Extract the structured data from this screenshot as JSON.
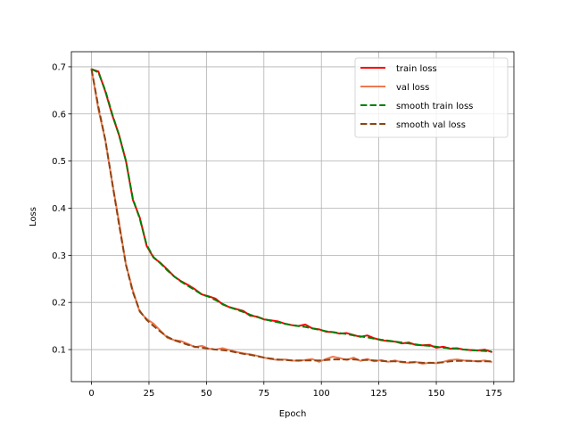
{
  "chart_data": {
    "type": "line",
    "title": "",
    "xlabel": "Epoch",
    "ylabel": "Loss",
    "xlim": [
      -8.75,
      183.75
    ],
    "ylim": [
      0.032,
      0.732
    ],
    "xticks": [
      0,
      25,
      50,
      75,
      100,
      125,
      150,
      175
    ],
    "yticks": [
      0.1,
      0.2,
      0.3,
      0.4,
      0.5,
      0.6,
      0.7
    ],
    "grid": true,
    "legend": "top-right",
    "series": [
      {
        "name": "train loss",
        "color": "#ff0000",
        "style": "solid",
        "x": [
          0,
          3,
          6,
          9,
          12,
          15,
          18,
          21,
          24,
          27,
          30,
          33,
          36,
          39,
          42,
          45,
          48,
          51,
          54,
          57,
          60,
          63,
          66,
          69,
          72,
          75,
          78,
          81,
          84,
          87,
          90,
          93,
          96,
          99,
          102,
          105,
          108,
          111,
          114,
          117,
          120,
          123,
          126,
          129,
          132,
          135,
          138,
          141,
          144,
          147,
          150,
          153,
          156,
          159,
          162,
          165,
          168,
          171,
          174
        ],
        "values": [
          0.695,
          0.69,
          0.648,
          0.598,
          0.555,
          0.5,
          0.418,
          0.38,
          0.32,
          0.295,
          0.284,
          0.27,
          0.255,
          0.245,
          0.237,
          0.228,
          0.217,
          0.213,
          0.208,
          0.196,
          0.19,
          0.186,
          0.182,
          0.172,
          0.17,
          0.164,
          0.162,
          0.16,
          0.155,
          0.152,
          0.15,
          0.153,
          0.145,
          0.143,
          0.138,
          0.137,
          0.134,
          0.135,
          0.131,
          0.127,
          0.13,
          0.124,
          0.12,
          0.118,
          0.117,
          0.113,
          0.115,
          0.11,
          0.109,
          0.11,
          0.104,
          0.106,
          0.102,
          0.103,
          0.1,
          0.099,
          0.098,
          0.1,
          0.095
        ]
      },
      {
        "name": "val loss",
        "color": "#f07850",
        "style": "solid",
        "x": [
          0,
          3,
          6,
          9,
          12,
          15,
          18,
          21,
          24,
          27,
          30,
          33,
          36,
          39,
          42,
          45,
          48,
          51,
          54,
          57,
          60,
          63,
          66,
          69,
          72,
          75,
          78,
          81,
          84,
          87,
          90,
          93,
          96,
          99,
          102,
          105,
          108,
          111,
          114,
          117,
          120,
          123,
          126,
          129,
          132,
          135,
          138,
          141,
          144,
          147,
          150,
          153,
          156,
          159,
          162,
          165,
          168,
          171,
          174
        ],
        "values": [
          0.695,
          0.61,
          0.545,
          0.455,
          0.37,
          0.28,
          0.225,
          0.18,
          0.165,
          0.155,
          0.14,
          0.125,
          0.12,
          0.118,
          0.112,
          0.105,
          0.108,
          0.102,
          0.1,
          0.103,
          0.099,
          0.095,
          0.092,
          0.09,
          0.087,
          0.083,
          0.08,
          0.078,
          0.079,
          0.077,
          0.076,
          0.078,
          0.08,
          0.074,
          0.08,
          0.085,
          0.082,
          0.078,
          0.083,
          0.076,
          0.08,
          0.075,
          0.078,
          0.074,
          0.077,
          0.073,
          0.072,
          0.074,
          0.07,
          0.072,
          0.071,
          0.074,
          0.078,
          0.079,
          0.077,
          0.076,
          0.075,
          0.077,
          0.074
        ]
      },
      {
        "name": "smooth train loss",
        "color": "#008000",
        "style": "dashed",
        "x": [
          0,
          3,
          6,
          9,
          12,
          15,
          18,
          21,
          24,
          27,
          30,
          33,
          36,
          39,
          42,
          45,
          48,
          51,
          54,
          57,
          60,
          63,
          66,
          69,
          72,
          75,
          78,
          81,
          84,
          87,
          90,
          93,
          96,
          99,
          102,
          105,
          108,
          111,
          114,
          117,
          120,
          123,
          126,
          129,
          132,
          135,
          138,
          141,
          144,
          147,
          150,
          153,
          156,
          159,
          162,
          165,
          168,
          171,
          174
        ],
        "values": [
          0.695,
          0.688,
          0.65,
          0.6,
          0.555,
          0.5,
          0.42,
          0.378,
          0.322,
          0.296,
          0.283,
          0.268,
          0.255,
          0.244,
          0.235,
          0.226,
          0.217,
          0.212,
          0.205,
          0.197,
          0.19,
          0.185,
          0.18,
          0.174,
          0.169,
          0.165,
          0.161,
          0.158,
          0.155,
          0.152,
          0.15,
          0.148,
          0.145,
          0.142,
          0.139,
          0.137,
          0.135,
          0.133,
          0.13,
          0.128,
          0.126,
          0.123,
          0.121,
          0.119,
          0.117,
          0.115,
          0.113,
          0.111,
          0.109,
          0.108,
          0.106,
          0.104,
          0.103,
          0.102,
          0.1,
          0.099,
          0.098,
          0.097,
          0.096
        ]
      },
      {
        "name": "smooth val loss",
        "color": "#8b4513",
        "style": "dashed",
        "x": [
          0,
          3,
          6,
          9,
          12,
          15,
          18,
          21,
          24,
          27,
          30,
          33,
          36,
          39,
          42,
          45,
          48,
          51,
          54,
          57,
          60,
          63,
          66,
          69,
          72,
          75,
          78,
          81,
          84,
          87,
          90,
          93,
          96,
          99,
          102,
          105,
          108,
          111,
          114,
          117,
          120,
          123,
          126,
          129,
          132,
          135,
          138,
          141,
          144,
          147,
          150,
          153,
          156,
          159,
          162,
          165,
          168,
          171,
          174
        ],
        "values": [
          0.695,
          0.615,
          0.545,
          0.455,
          0.365,
          0.28,
          0.222,
          0.182,
          0.163,
          0.15,
          0.138,
          0.127,
          0.12,
          0.115,
          0.11,
          0.106,
          0.104,
          0.102,
          0.1,
          0.099,
          0.097,
          0.094,
          0.091,
          0.089,
          0.086,
          0.083,
          0.081,
          0.079,
          0.078,
          0.077,
          0.077,
          0.077,
          0.077,
          0.077,
          0.078,
          0.079,
          0.079,
          0.079,
          0.079,
          0.078,
          0.078,
          0.077,
          0.076,
          0.075,
          0.075,
          0.074,
          0.073,
          0.073,
          0.072,
          0.072,
          0.072,
          0.073,
          0.075,
          0.076,
          0.076,
          0.076,
          0.075,
          0.075,
          0.075
        ]
      }
    ]
  }
}
